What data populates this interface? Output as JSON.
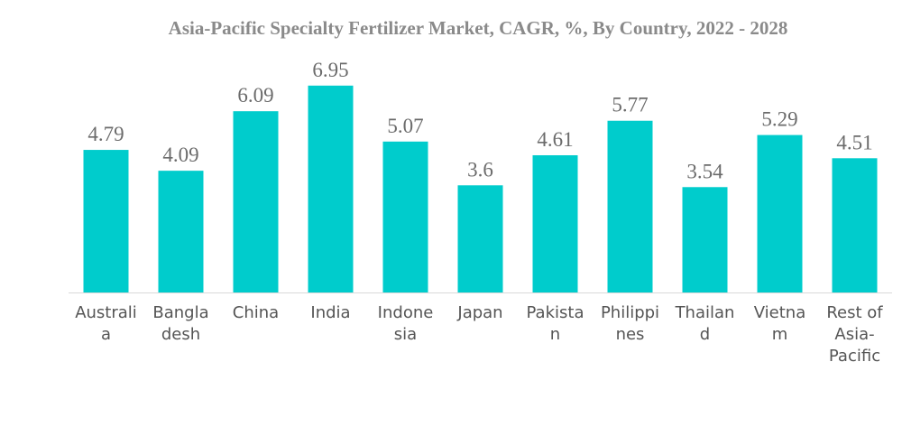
{
  "chart_data": {
    "type": "bar",
    "title": "Asia-Pacific Specialty Fertilizer Market, CAGR, %, By Country, 2022 - 2028",
    "xlabel": "",
    "ylabel": "",
    "ylim": [
      0,
      7.4
    ],
    "grid": false,
    "bar_color": "#00cccc",
    "categories": [
      [
        "Australi",
        "a"
      ],
      [
        "Bangla",
        "desh"
      ],
      [
        "China"
      ],
      [
        "India"
      ],
      [
        "Indone",
        "sia"
      ],
      [
        "Japan"
      ],
      [
        "Pakista",
        "n"
      ],
      [
        "Philippi",
        "nes"
      ],
      [
        "Thailan",
        "d"
      ],
      [
        "Vietna",
        "m"
      ],
      [
        "Rest of",
        "Asia-",
        "Pacific"
      ]
    ],
    "values": [
      4.79,
      4.09,
      6.09,
      6.95,
      5.07,
      3.6,
      4.61,
      5.77,
      3.54,
      5.29,
      4.51
    ],
    "value_labels": [
      "4.79",
      "4.09",
      "6.09",
      "6.95",
      "5.07",
      "3.6",
      "4.61",
      "5.77",
      "3.54",
      "5.29",
      "4.51"
    ]
  }
}
